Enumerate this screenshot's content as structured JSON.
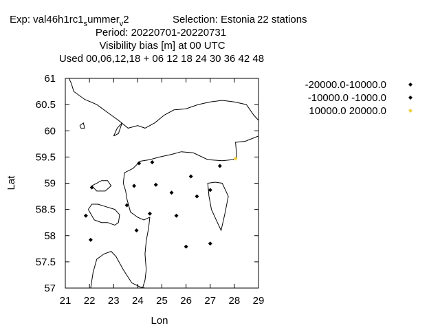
{
  "title": {
    "line1": {
      "exp_prefix": "Exp: val46h1rc1",
      "sub_s": "s",
      "mid": "ummer",
      "sub_v": "v",
      "end": "2",
      "selection": "Selection: Estonia",
      "stations": "22 stations"
    },
    "line2": "Period: 20220701-20220731",
    "line3": "Visibility bias [m] at  00 UTC",
    "line4": "Used  00,06,12,18  + 06 12 18 24 30 36 42 48"
  },
  "chart_data": {
    "type": "scatter",
    "xlabel": "Lon",
    "ylabel": "Lat",
    "xlim": [
      21,
      29
    ],
    "ylim": [
      57,
      61
    ],
    "xticks": [
      21,
      22,
      23,
      24,
      25,
      26,
      27,
      28,
      29
    ],
    "yticks": [
      57,
      57.5,
      58,
      58.5,
      59,
      59.5,
      60,
      60.5,
      61
    ],
    "xtick_labels": [
      "21",
      "22",
      "23",
      "24",
      "25",
      "26",
      "27",
      "28",
      "29"
    ],
    "ytick_labels": [
      "57",
      "57.5",
      "58",
      "58.5",
      "59",
      "59.5",
      "60",
      "60.5",
      "61"
    ],
    "grid": false,
    "legend_position": "right",
    "series": [
      {
        "name": "-20000.0-10000.0",
        "color": "#000000",
        "points": []
      },
      {
        "name": "-10000.0 -1000.0",
        "color": "#000000",
        "points": [
          [
            24.05,
            59.38
          ],
          [
            24.6,
            59.4
          ],
          [
            27.4,
            59.33
          ],
          [
            26.2,
            59.13
          ],
          [
            22.1,
            58.92
          ],
          [
            23.85,
            58.95
          ],
          [
            24.75,
            58.97
          ],
          [
            25.4,
            58.82
          ],
          [
            27.0,
            58.87
          ],
          [
            26.45,
            58.75
          ],
          [
            23.55,
            58.58
          ],
          [
            21.85,
            58.38
          ],
          [
            24.5,
            58.42
          ],
          [
            25.6,
            58.38
          ],
          [
            23.95,
            58.1
          ],
          [
            22.05,
            57.92
          ],
          [
            27.0,
            57.85
          ],
          [
            26.0,
            57.79
          ]
        ]
      },
      {
        "name": "10000.0 20000.0",
        "color": "#f0d040",
        "points": [
          [
            28.05,
            59.47
          ]
        ]
      }
    ]
  },
  "map": {
    "coastlines": [
      [
        [
          22.05,
          57.0
        ],
        [
          22.15,
          57.3
        ],
        [
          22.3,
          57.55
        ],
        [
          22.6,
          57.65
        ],
        [
          22.9,
          57.7
        ],
        [
          23.1,
          57.6
        ],
        [
          23.4,
          57.35
        ],
        [
          23.75,
          57.1
        ],
        [
          24.1,
          57.02
        ],
        [
          24.3,
          57.0
        ]
      ],
      [
        [
          24.2,
          57.0
        ],
        [
          24.3,
          57.15
        ],
        [
          24.35,
          57.35
        ],
        [
          24.3,
          57.65
        ],
        [
          24.35,
          57.9
        ],
        [
          24.45,
          58.15
        ],
        [
          24.5,
          58.35
        ],
        [
          24.25,
          58.3
        ],
        [
          24.0,
          58.35
        ],
        [
          23.7,
          58.45
        ],
        [
          23.55,
          58.7
        ],
        [
          23.5,
          58.85
        ],
        [
          23.4,
          59.0
        ],
        [
          23.45,
          59.2
        ],
        [
          23.8,
          59.28
        ],
        [
          24.1,
          59.42
        ],
        [
          24.5,
          59.45
        ],
        [
          24.9,
          59.5
        ],
        [
          25.4,
          59.55
        ],
        [
          25.8,
          59.6
        ],
        [
          26.3,
          59.58
        ],
        [
          26.9,
          59.45
        ],
        [
          27.5,
          59.43
        ],
        [
          27.95,
          59.45
        ],
        [
          28.1,
          59.5
        ],
        [
          28.05,
          59.78
        ],
        [
          28.45,
          59.8
        ],
        [
          29.0,
          59.9
        ]
      ],
      [
        [
          21.15,
          61.0
        ],
        [
          21.25,
          60.9
        ],
        [
          21.35,
          60.75
        ],
        [
          21.8,
          60.6
        ],
        [
          22.3,
          60.5
        ],
        [
          22.9,
          60.3
        ],
        [
          23.2,
          60.2
        ],
        [
          23.6,
          60.05
        ],
        [
          24.0,
          60.1
        ],
        [
          24.3,
          60.05
        ],
        [
          24.7,
          60.15
        ],
        [
          25.1,
          60.3
        ],
        [
          25.5,
          60.4
        ],
        [
          26.0,
          60.42
        ],
        [
          26.5,
          60.5
        ],
        [
          27.0,
          60.55
        ],
        [
          27.5,
          60.58
        ],
        [
          28.0,
          60.55
        ],
        [
          28.5,
          60.5
        ],
        [
          28.8,
          60.3
        ],
        [
          29.0,
          60.2
        ]
      ],
      [
        [
          21.95,
          58.5
        ],
        [
          22.2,
          58.3
        ],
        [
          22.5,
          58.25
        ],
        [
          22.75,
          58.25
        ],
        [
          23.05,
          58.2
        ],
        [
          23.2,
          58.25
        ],
        [
          23.25,
          58.4
        ],
        [
          23.05,
          58.5
        ],
        [
          22.7,
          58.55
        ],
        [
          22.35,
          58.6
        ],
        [
          22.1,
          58.6
        ],
        [
          21.95,
          58.5
        ]
      ],
      [
        [
          22.1,
          58.95
        ],
        [
          22.5,
          59.05
        ],
        [
          22.75,
          59.05
        ],
        [
          22.9,
          58.95
        ],
        [
          22.65,
          58.85
        ],
        [
          22.3,
          58.85
        ],
        [
          22.1,
          58.95
        ]
      ],
      [
        [
          26.95,
          58.75
        ],
        [
          26.9,
          59.0
        ],
        [
          27.2,
          59.02
        ],
        [
          27.5,
          59.0
        ],
        [
          27.75,
          58.75
        ],
        [
          27.6,
          58.4
        ],
        [
          27.45,
          58.1
        ],
        [
          27.25,
          58.3
        ],
        [
          27.05,
          58.5
        ],
        [
          26.95,
          58.75
        ]
      ],
      [
        [
          23.0,
          59.9
        ],
        [
          23.15,
          60.05
        ],
        [
          23.35,
          60.15
        ],
        [
          23.2,
          59.95
        ],
        [
          23.0,
          59.9
        ]
      ],
      [
        [
          21.6,
          60.1
        ],
        [
          21.75,
          60.15
        ],
        [
          21.8,
          60.05
        ],
        [
          21.65,
          60.05
        ],
        [
          21.6,
          60.1
        ]
      ]
    ]
  }
}
